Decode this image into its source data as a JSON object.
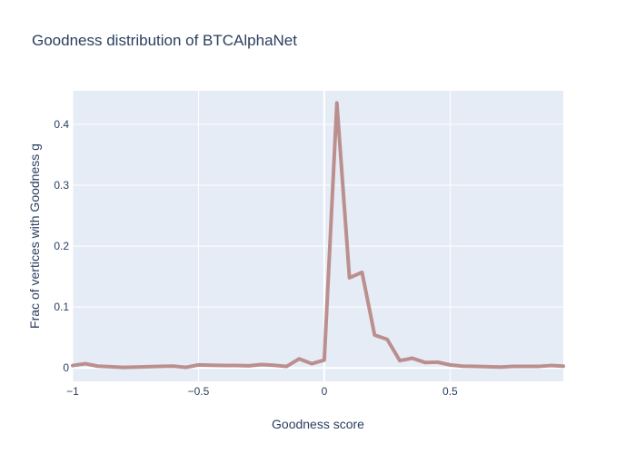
{
  "chart_data": {
    "type": "line",
    "title": "Goodness distribution of BTCAlphaNet",
    "xlabel": "Goodness score",
    "ylabel": "Frac of vertices with Goodness g",
    "xlim": [
      -1,
      0.95
    ],
    "ylim": [
      -0.022,
      0.455
    ],
    "x_ticks": [
      -1,
      -0.5,
      0,
      0.5
    ],
    "x_tick_labels": [
      "−1",
      "−0.5",
      "0",
      "0.5"
    ],
    "y_ticks": [
      0,
      0.1,
      0.2,
      0.3,
      0.4
    ],
    "y_tick_labels": [
      "0",
      "0.1",
      "0.2",
      "0.3",
      "0.4"
    ],
    "grid": true,
    "colors": {
      "line": "#bc8f8f",
      "plot_bg": "#e5ecf6",
      "grid": "#ffffff",
      "text": "#2a3f5f"
    },
    "series": [
      {
        "x": [
          -1.0,
          -0.95,
          -0.9,
          -0.85,
          -0.8,
          -0.75,
          -0.7,
          -0.65,
          -0.6,
          -0.55,
          -0.5,
          -0.45,
          -0.4,
          -0.35,
          -0.3,
          -0.25,
          -0.2,
          -0.15,
          -0.1,
          -0.05,
          0.0,
          0.05,
          0.1,
          0.15,
          0.2,
          0.25,
          0.3,
          0.35,
          0.4,
          0.45,
          0.5,
          0.55,
          0.6,
          0.65,
          0.7,
          0.75,
          0.8,
          0.85,
          0.9,
          0.95
        ],
        "y": [
          0.004,
          0.007,
          0.003,
          0.002,
          0.001,
          0.0015,
          0.002,
          0.0025,
          0.003,
          0.001,
          0.005,
          0.0045,
          0.004,
          0.004,
          0.0035,
          0.0055,
          0.0045,
          0.0025,
          0.015,
          0.007,
          0.013,
          0.435,
          0.148,
          0.157,
          0.054,
          0.047,
          0.012,
          0.016,
          0.009,
          0.0095,
          0.005,
          0.003,
          0.0025,
          0.002,
          0.0015,
          0.0025,
          0.0025,
          0.0025,
          0.004,
          0.003
        ]
      }
    ]
  }
}
